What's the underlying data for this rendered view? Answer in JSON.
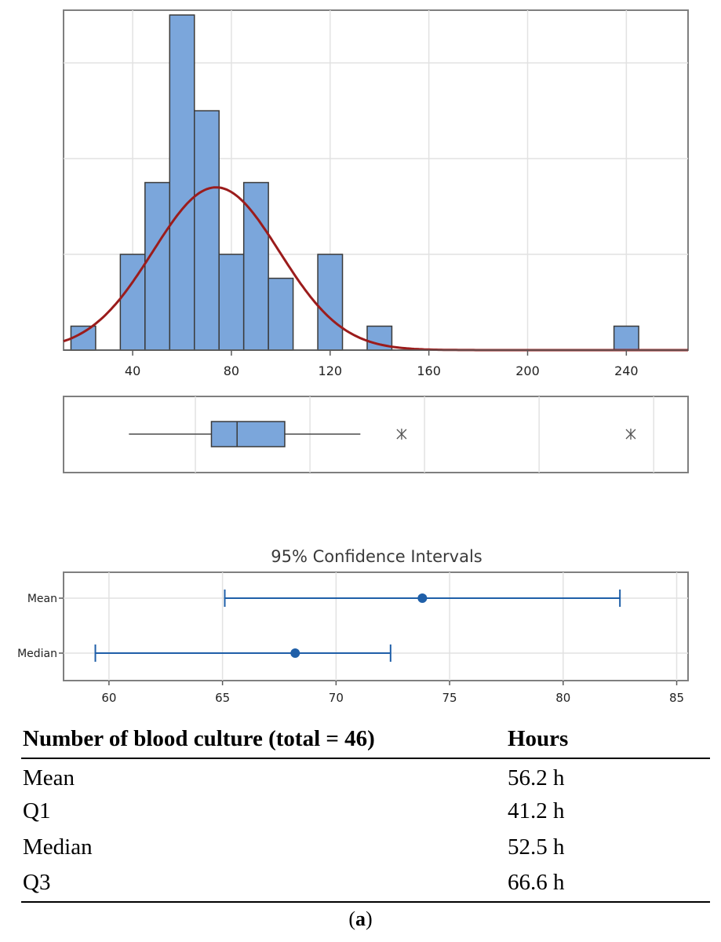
{
  "chart_data": [
    {
      "type": "histogram",
      "title": "",
      "xlabel": "",
      "ylabel": "",
      "xlim": [
        12,
        265
      ],
      "ylim": [
        0,
        7.1
      ],
      "x_ticks": [
        40,
        80,
        120,
        160,
        200,
        240
      ],
      "y_gridlines": [
        2,
        4,
        6
      ],
      "bins": [
        {
          "from": 15,
          "to": 25,
          "count": 0.5
        },
        {
          "from": 35,
          "to": 45,
          "count": 2
        },
        {
          "from": 45,
          "to": 55,
          "count": 3.5
        },
        {
          "from": 55,
          "to": 65,
          "count": 7
        },
        {
          "from": 65,
          "to": 75,
          "count": 5
        },
        {
          "from": 75,
          "to": 85,
          "count": 2
        },
        {
          "from": 85,
          "to": 95,
          "count": 3.5
        },
        {
          "from": 95,
          "to": 105,
          "count": 1.5
        },
        {
          "from": 115,
          "to": 125,
          "count": 2
        },
        {
          "from": 135,
          "to": 145,
          "count": 0.5
        },
        {
          "from": 235,
          "to": 245,
          "count": 0.5
        }
      ],
      "normal_fit": {
        "mean": 73.8,
        "sd": 25.6,
        "peak": 3.4
      }
    },
    {
      "type": "boxplot",
      "whisker_low": 21,
      "q1": 57,
      "median": 68.2,
      "q3": 89,
      "whisker_high": 122,
      "outliers": [
        140,
        240
      ]
    },
    {
      "type": "interval",
      "title": "95% Confidence Intervals",
      "xlim": [
        58,
        85.5
      ],
      "x_ticks": [
        60,
        65,
        70,
        75,
        80,
        85
      ],
      "categories": [
        "Mean",
        "Median"
      ],
      "intervals": [
        {
          "name": "Mean",
          "low": 65.1,
          "estimate": 73.8,
          "high": 82.5
        },
        {
          "name": "Median",
          "low": 59.4,
          "estimate": 68.2,
          "high": 72.4
        }
      ]
    }
  ],
  "table": {
    "header_left": "Number of blood culture (total = 46)",
    "header_right": "Hours",
    "rows": [
      {
        "label": "Mean",
        "value": "56.2 h"
      },
      {
        "label": "Q1",
        "value": "41.2 h"
      },
      {
        "label": "Median",
        "value": "52.5 h"
      },
      {
        "label": "Q3",
        "value": "66.6 h"
      }
    ]
  },
  "caption": {
    "open": "(",
    "letter": "a",
    "close": ")"
  },
  "colors": {
    "bar_fill": "#7ba6db",
    "bar_stroke": "#3a3a3a",
    "fit_line": "#9b1c1c",
    "ci_color": "#1f5fa8",
    "grid": "#e2e2e2",
    "frame": "#7f7f7f"
  }
}
